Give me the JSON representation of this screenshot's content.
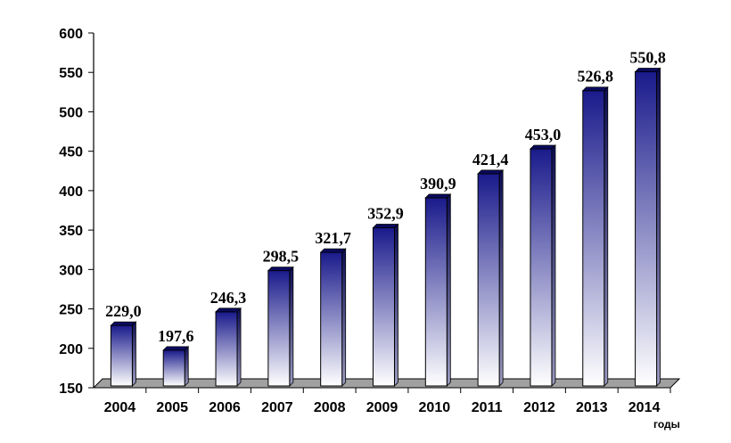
{
  "chart_data": {
    "type": "bar",
    "categories": [
      "2004",
      "2005",
      "2006",
      "2007",
      "2008",
      "2009",
      "2010",
      "2011",
      "2012",
      "2013",
      "2014"
    ],
    "values": [
      229.0,
      197.6,
      246.3,
      298.5,
      321.7,
      352.9,
      390.9,
      421.4,
      453.0,
      526.8,
      550.8
    ],
    "data_labels": [
      "229,0",
      "197,6",
      "246,3",
      "298,5",
      "321,7",
      "352,9",
      "390,9",
      "421,4",
      "453,0",
      "526,8",
      "550,8"
    ],
    "ylim": [
      150,
      600
    ],
    "yticks": [
      150,
      200,
      250,
      300,
      350,
      400,
      450,
      500,
      550,
      600
    ],
    "xlabel": "годы",
    "ylabel": "",
    "title": "",
    "grid": false,
    "bar_color_top": "#1a1a8c",
    "bar_color_bottom": "#ffffff",
    "floor_color": "#a0a0a0"
  }
}
